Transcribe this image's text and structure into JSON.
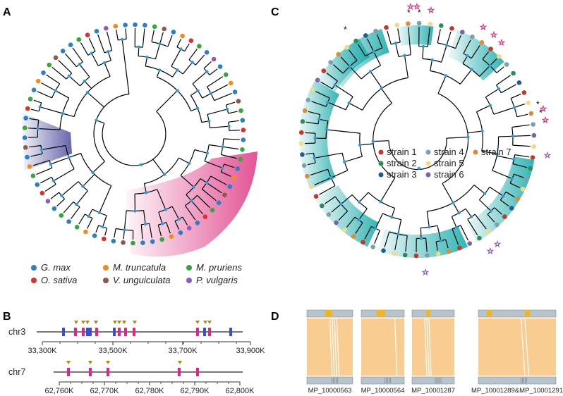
{
  "panels": {
    "a": {
      "label": "A",
      "legend": [
        {
          "name": "G. max",
          "color": "#2e7fc1"
        },
        {
          "name": "M. truncatula",
          "color": "#f08a24"
        },
        {
          "name": "M. pruriens",
          "color": "#3aa443"
        },
        {
          "name": "O. sativa",
          "color": "#d8322f"
        },
        {
          "name": "V. unguiculata",
          "color": "#8b5a4a"
        },
        {
          "name": "P. vulgaris",
          "color": "#8e5cb8"
        }
      ],
      "highlight_colors": {
        "blue": "#4a4a9c",
        "pink": "#e0418a"
      }
    },
    "b": {
      "label": "B",
      "tracks": [
        {
          "name": "chr3",
          "ticks": [
            "33,300K",
            "33,500K",
            "33,700K",
            "33,900K"
          ]
        },
        {
          "name": "chr7",
          "ticks": [
            "62,760K",
            "62,770K",
            "62,780K",
            "62,790K",
            "62,800K"
          ]
        }
      ],
      "colors": {
        "pink": "#e0248a",
        "blue": "#3a4fd0",
        "marker": "#b8860b"
      }
    },
    "c": {
      "label": "C",
      "legend": [
        {
          "name": "strain 1",
          "color": "#c0392b"
        },
        {
          "name": "strain 4",
          "color": "#7fa0ab"
        },
        {
          "name": "strain 7",
          "color": "#d98e3a"
        },
        {
          "name": "strain 2",
          "color": "#2e8b57"
        },
        {
          "name": "strain 5",
          "color": "#f2d98d"
        },
        {
          "name": "strain 3",
          "color": "#1f5f8b"
        },
        {
          "name": "strain 6",
          "color": "#7a64a8"
        }
      ],
      "highlight_color": "#2ab0b0"
    },
    "d": {
      "label": "D",
      "blocks": [
        {
          "name": "MP_10000563"
        },
        {
          "name": "MP_10000564"
        },
        {
          "name": "MP_10001287"
        },
        {
          "name": "MP_10001289&MP_10001291"
        }
      ],
      "colors": {
        "bar": "#b8c4cc",
        "fill": "#f9cc92",
        "gene": "#f0b428"
      }
    }
  }
}
